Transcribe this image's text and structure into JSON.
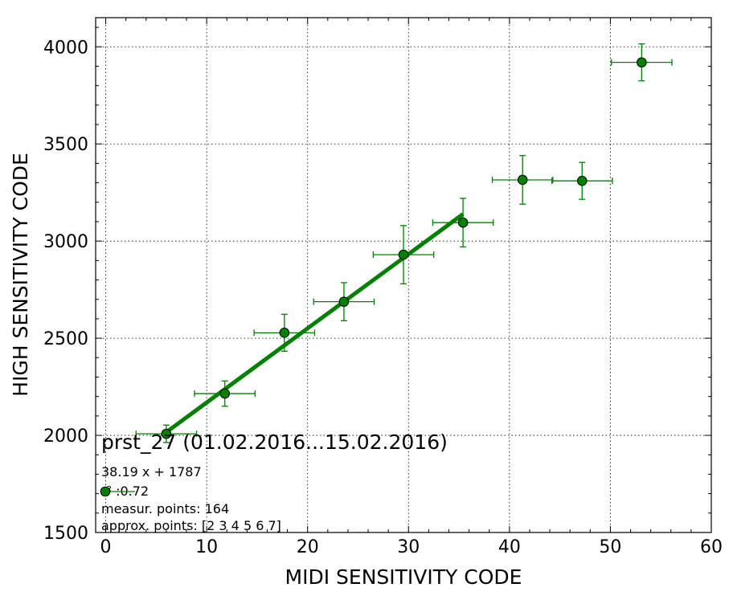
{
  "chart_data": {
    "type": "scatter",
    "title": "",
    "xlabel": "MIDI SENSITIVITY CODE",
    "ylabel": "HIGH SENSITIVITY CODE",
    "xlim": [
      -1,
      60
    ],
    "ylim": [
      1500,
      4150
    ],
    "xticks": [
      0,
      10,
      20,
      30,
      40,
      50,
      60
    ],
    "yticks": [
      1500,
      2000,
      2500,
      3000,
      3500,
      4000
    ],
    "grid": true,
    "colors": {
      "marker": "#008000",
      "fit_line": "#008000",
      "errorbar": "#008000"
    },
    "series": [
      {
        "kind": "errorbar-points",
        "points": [
          {
            "x": 6.0,
            "y": 2008,
            "xerr": 3.0,
            "yerr": 45
          },
          {
            "x": 11.8,
            "y": 2215,
            "xerr": 3.0,
            "yerr": 65
          },
          {
            "x": 17.7,
            "y": 2528,
            "xerr": 3.0,
            "yerr": 95
          },
          {
            "x": 23.6,
            "y": 2688,
            "xerr": 3.0,
            "yerr": 98
          },
          {
            "x": 29.5,
            "y": 2930,
            "xerr": 3.0,
            "yerr": 150
          },
          {
            "x": 35.4,
            "y": 3095,
            "xerr": 3.0,
            "yerr": 125
          },
          {
            "x": 41.3,
            "y": 3315,
            "xerr": 3.0,
            "yerr": 125
          },
          {
            "x": 47.2,
            "y": 3310,
            "xerr": 3.0,
            "yerr": 95
          },
          {
            "x": 53.1,
            "y": 3920,
            "xerr": 3.0,
            "yerr": 95
          }
        ]
      },
      {
        "kind": "fit-line",
        "slope": 38.19,
        "intercept": 1787,
        "x_range": [
          6.0,
          35.4
        ]
      }
    ],
    "annotations": {
      "title_text": "prst_27 (01.02.2016...15.02.2016)",
      "equation": "38.19 x + 1787",
      "r2": "r² :0.72",
      "measured": "measur. points: 164",
      "approx": "approx. points: [2 3 4 5 6 7]"
    }
  }
}
